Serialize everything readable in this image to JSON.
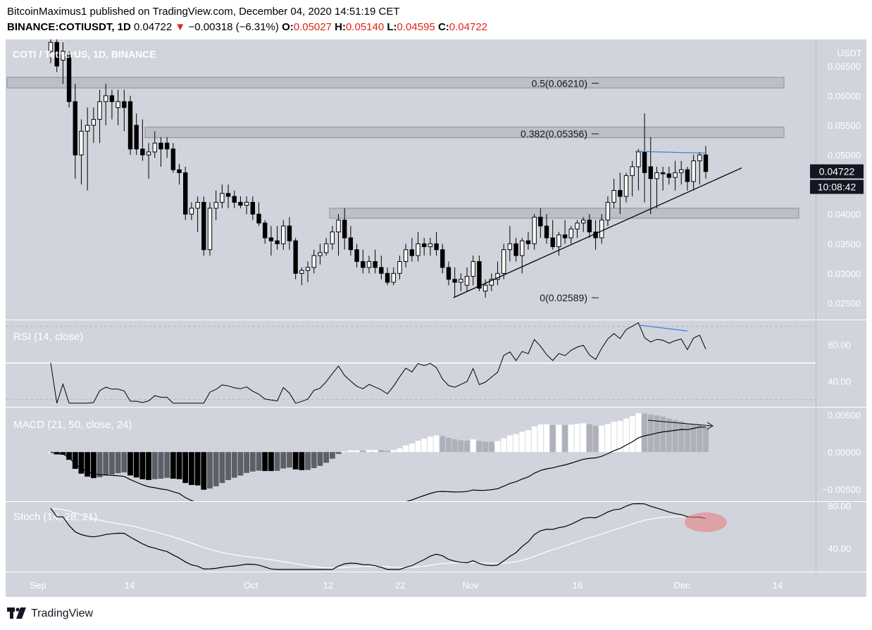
{
  "header": {
    "line1": "BitcoinMaximus1 published on TradingView.com, December 04, 2020 14:51:19 CET",
    "symbol": "BINANCE:COTIUSDT, 1D",
    "last": "0.04722",
    "change_arrow": "▼",
    "change": "−0.00318 (−6.31%)",
    "o_label": "O:",
    "o": "0.05027",
    "h_label": "H:",
    "h": "0.05140",
    "l_label": "L:",
    "l": "0.04595",
    "c_label": "C:",
    "c": "0.04722"
  },
  "footer": {
    "brand": "TradingView"
  },
  "chart_data": {
    "type": "candlestick",
    "title": "COTI / TetherUS, 1D, BINANCE",
    "currency": "USDT",
    "price_axis": {
      "ticks": [
        "0.06500",
        "0.06000",
        "0.05500",
        "0.05000",
        "0.04500",
        "0.04000",
        "0.03500",
        "0.03000",
        "0.02500"
      ],
      "range": [
        0.0222,
        0.0695
      ]
    },
    "time_axis": {
      "labels": [
        "Sep",
        "14",
        "Oct",
        "12",
        "22",
        "Nov",
        "16",
        "Dec",
        "14"
      ]
    },
    "last_price_label": "0.04722",
    "countdown_label": "10:08:42",
    "fib_levels": [
      {
        "label": "0.5(0.06210)",
        "value": 0.0621
      },
      {
        "label": "0.382(0.05356)",
        "value": 0.05356
      },
      {
        "label": "0(0.02589)",
        "value": 0.02589
      }
    ],
    "zones": [
      {
        "low": 0.0613,
        "high": 0.0631
      },
      {
        "low": 0.0529,
        "high": 0.0547
      },
      {
        "low": 0.0393,
        "high": 0.041
      }
    ],
    "trendline": {
      "from": [
        "Nov 02",
        0.0259
      ],
      "to": [
        "Dec 09",
        0.0478
      ]
    },
    "candles": [
      [
        0.0675,
        0.07,
        0.0655,
        0.069
      ],
      [
        0.069,
        0.0698,
        0.064,
        0.065
      ],
      [
        0.066,
        0.069,
        0.062,
        0.0675
      ],
      [
        0.067,
        0.0675,
        0.058,
        0.059
      ],
      [
        0.059,
        0.062,
        0.046,
        0.05
      ],
      [
        0.05,
        0.056,
        0.045,
        0.054
      ],
      [
        0.054,
        0.058,
        0.044,
        0.055
      ],
      [
        0.055,
        0.058,
        0.052,
        0.056
      ],
      [
        0.056,
        0.061,
        0.052,
        0.059
      ],
      [
        0.059,
        0.062,
        0.055,
        0.06
      ],
      [
        0.06,
        0.061,
        0.056,
        0.059
      ],
      [
        0.058,
        0.061,
        0.055,
        0.059
      ],
      [
        0.059,
        0.061,
        0.054,
        0.058
      ],
      [
        0.059,
        0.06,
        0.05,
        0.051
      ],
      [
        0.055,
        0.057,
        0.05,
        0.051
      ],
      [
        0.051,
        0.056,
        0.049,
        0.05
      ],
      [
        0.05,
        0.052,
        0.046,
        0.0505
      ],
      [
        0.0505,
        0.054,
        0.0495,
        0.052
      ],
      [
        0.052,
        0.053,
        0.048,
        0.051
      ],
      [
        0.052,
        0.053,
        0.0495,
        0.051
      ],
      [
        0.051,
        0.052,
        0.047,
        0.0475
      ],
      [
        0.0475,
        0.0485,
        0.045,
        0.047
      ],
      [
        0.047,
        0.048,
        0.039,
        0.04
      ],
      [
        0.04,
        0.042,
        0.039,
        0.041
      ],
      [
        0.041,
        0.043,
        0.037,
        0.042
      ],
      [
        0.042,
        0.043,
        0.033,
        0.034
      ],
      [
        0.034,
        0.042,
        0.033,
        0.041
      ],
      [
        0.041,
        0.044,
        0.039,
        0.042
      ],
      [
        0.042,
        0.045,
        0.041,
        0.0435
      ],
      [
        0.0435,
        0.045,
        0.041,
        0.043
      ],
      [
        0.043,
        0.044,
        0.041,
        0.042
      ],
      [
        0.042,
        0.043,
        0.041,
        0.0415
      ],
      [
        0.0415,
        0.043,
        0.04,
        0.042
      ],
      [
        0.042,
        0.043,
        0.039,
        0.04
      ],
      [
        0.04,
        0.042,
        0.038,
        0.0385
      ],
      [
        0.0385,
        0.039,
        0.035,
        0.036
      ],
      [
        0.036,
        0.038,
        0.033,
        0.0355
      ],
      [
        0.0355,
        0.038,
        0.034,
        0.035
      ],
      [
        0.035,
        0.039,
        0.034,
        0.038
      ],
      [
        0.038,
        0.0395,
        0.034,
        0.0355
      ],
      [
        0.0355,
        0.036,
        0.029,
        0.03
      ],
      [
        0.03,
        0.031,
        0.028,
        0.0305
      ],
      [
        0.0305,
        0.032,
        0.0285,
        0.031
      ],
      [
        0.031,
        0.034,
        0.03,
        0.033
      ],
      [
        0.033,
        0.035,
        0.0315,
        0.0335
      ],
      [
        0.0335,
        0.036,
        0.033,
        0.035
      ],
      [
        0.035,
        0.038,
        0.034,
        0.037
      ],
      [
        0.037,
        0.04,
        0.033,
        0.039
      ],
      [
        0.039,
        0.041,
        0.034,
        0.036
      ],
      [
        0.036,
        0.038,
        0.033,
        0.034
      ],
      [
        0.034,
        0.035,
        0.031,
        0.032
      ],
      [
        0.032,
        0.034,
        0.03,
        0.031
      ],
      [
        0.031,
        0.033,
        0.03,
        0.032
      ],
      [
        0.032,
        0.034,
        0.03,
        0.031
      ],
      [
        0.031,
        0.033,
        0.029,
        0.03
      ],
      [
        0.03,
        0.031,
        0.028,
        0.0285
      ],
      [
        0.0285,
        0.031,
        0.028,
        0.03
      ],
      [
        0.03,
        0.033,
        0.029,
        0.032
      ],
      [
        0.032,
        0.035,
        0.031,
        0.034
      ],
      [
        0.034,
        0.036,
        0.032,
        0.033
      ],
      [
        0.033,
        0.037,
        0.032,
        0.035
      ],
      [
        0.035,
        0.036,
        0.033,
        0.0345
      ],
      [
        0.0345,
        0.036,
        0.033,
        0.035
      ],
      [
        0.035,
        0.037,
        0.033,
        0.034
      ],
      [
        0.034,
        0.035,
        0.03,
        0.031
      ],
      [
        0.031,
        0.032,
        0.028,
        0.029
      ],
      [
        0.029,
        0.031,
        0.026,
        0.0285
      ],
      [
        0.0285,
        0.03,
        0.027,
        0.029
      ],
      [
        0.028,
        0.031,
        0.027,
        0.0295
      ],
      [
        0.0295,
        0.033,
        0.028,
        0.032
      ],
      [
        0.032,
        0.033,
        0.027,
        0.0275
      ],
      [
        0.027,
        0.029,
        0.0259,
        0.028
      ],
      [
        0.028,
        0.03,
        0.027,
        0.029
      ],
      [
        0.029,
        0.032,
        0.028,
        0.03
      ],
      [
        0.03,
        0.035,
        0.029,
        0.034
      ],
      [
        0.034,
        0.038,
        0.032,
        0.035
      ],
      [
        0.035,
        0.036,
        0.032,
        0.033
      ],
      [
        0.033,
        0.036,
        0.03,
        0.0355
      ],
      [
        0.0355,
        0.037,
        0.034,
        0.035
      ],
      [
        0.035,
        0.04,
        0.034,
        0.0395
      ],
      [
        0.0395,
        0.041,
        0.036,
        0.038
      ],
      [
        0.038,
        0.04,
        0.035,
        0.036
      ],
      [
        0.036,
        0.039,
        0.034,
        0.0345
      ],
      [
        0.0345,
        0.037,
        0.033,
        0.0365
      ],
      [
        0.0365,
        0.039,
        0.035,
        0.036
      ],
      [
        0.036,
        0.038,
        0.035,
        0.0375
      ],
      [
        0.0375,
        0.039,
        0.036,
        0.0385
      ],
      [
        0.0385,
        0.0395,
        0.037,
        0.039
      ],
      [
        0.039,
        0.04,
        0.036,
        0.037
      ],
      [
        0.037,
        0.039,
        0.034,
        0.036
      ],
      [
        0.036,
        0.04,
        0.035,
        0.039
      ],
      [
        0.039,
        0.043,
        0.038,
        0.042
      ],
      [
        0.042,
        0.046,
        0.041,
        0.044
      ],
      [
        0.044,
        0.047,
        0.04,
        0.043
      ],
      [
        0.043,
        0.047,
        0.042,
        0.0465
      ],
      [
        0.0465,
        0.049,
        0.043,
        0.048
      ],
      [
        0.048,
        0.051,
        0.044,
        0.0505
      ],
      [
        0.0505,
        0.057,
        0.042,
        0.047
      ],
      [
        0.048,
        0.053,
        0.04,
        0.046
      ],
      [
        0.046,
        0.048,
        0.041,
        0.047
      ],
      [
        0.047,
        0.048,
        0.044,
        0.0468
      ],
      [
        0.0468,
        0.048,
        0.045,
        0.0462
      ],
      [
        0.0462,
        0.049,
        0.044,
        0.047
      ],
      [
        0.047,
        0.049,
        0.045,
        0.0475
      ],
      [
        0.0475,
        0.048,
        0.044,
        0.0455
      ],
      [
        0.0455,
        0.05,
        0.044,
        0.049
      ],
      [
        0.049,
        0.0505,
        0.045,
        0.05
      ],
      [
        0.05,
        0.0515,
        0.046,
        0.0472
      ]
    ],
    "indicators": {
      "rsi": {
        "label": "RSI (14, close)",
        "ticks": [
          "60.00",
          "40.00"
        ],
        "range": [
          26,
          73
        ]
      },
      "macd": {
        "label": "MACD (21, 50, close, 24)",
        "ticks": [
          "0.00500",
          "0.00000",
          "−0.00500"
        ],
        "range": [
          -0.0066,
          0.0057
        ]
      },
      "stoch": {
        "label": "Stoch (14, 28, 21)",
        "ticks": [
          "80.00",
          "40.00"
        ],
        "range": [
          18,
          83
        ]
      }
    }
  }
}
